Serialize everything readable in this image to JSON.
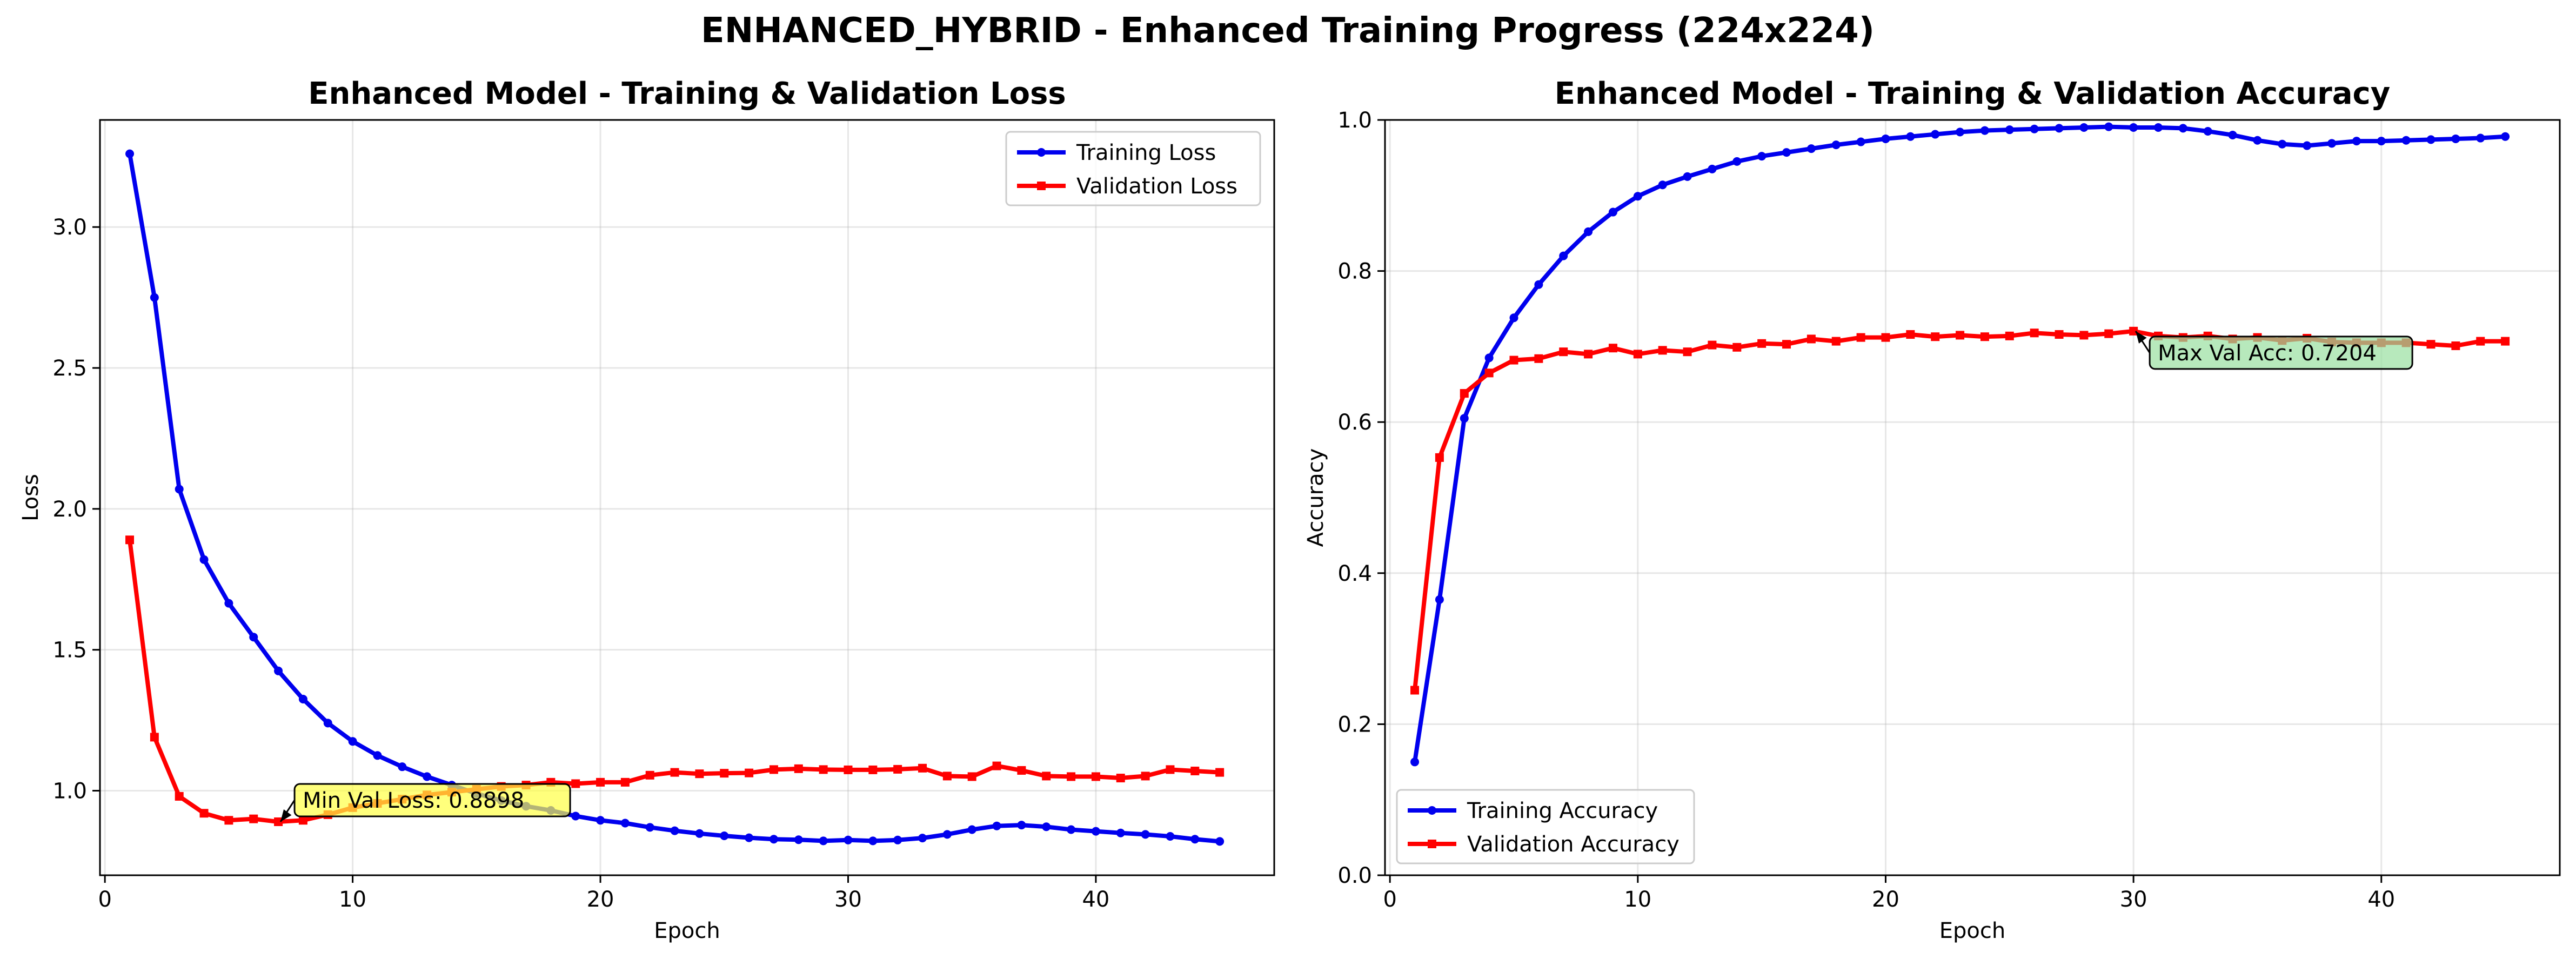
{
  "suptitle": "ENHANCED_HYBRID - Enhanced Training Progress (224x224)",
  "chart_data": [
    {
      "type": "line",
      "title": "Enhanced Model - Training & Validation Loss",
      "xlabel": "Epoch",
      "ylabel": "Loss",
      "xlim": [
        -0.2,
        47.2
      ],
      "ylim": [
        0.7,
        3.38
      ],
      "xticks": [
        0,
        10,
        20,
        30,
        40
      ],
      "yticks": [
        1.0,
        1.5,
        2.0,
        2.5,
        3.0
      ],
      "ytick_labels": [
        "1.0",
        "1.5",
        "2.0",
        "2.5",
        "3.0"
      ],
      "grid": true,
      "legend": "top-right",
      "x": [
        1,
        2,
        3,
        4,
        5,
        6,
        7,
        8,
        9,
        10,
        11,
        12,
        13,
        14,
        15,
        16,
        17,
        18,
        19,
        20,
        21,
        22,
        23,
        24,
        25,
        26,
        27,
        28,
        29,
        30,
        31,
        32,
        33,
        34,
        35,
        36,
        37,
        38,
        39,
        40,
        41,
        42,
        43,
        44,
        45
      ],
      "series": [
        {
          "name": "Training Loss",
          "color": "#0000ee",
          "marker": "circle",
          "values": [
            3.26,
            2.75,
            2.07,
            1.82,
            1.665,
            1.545,
            1.425,
            1.325,
            1.24,
            1.175,
            1.125,
            1.085,
            1.05,
            1.02,
            0.99,
            0.965,
            0.945,
            0.93,
            0.91,
            0.895,
            0.885,
            0.87,
            0.858,
            0.848,
            0.84,
            0.833,
            0.828,
            0.826,
            0.822,
            0.825,
            0.822,
            0.825,
            0.832,
            0.845,
            0.862,
            0.875,
            0.878,
            0.872,
            0.862,
            0.856,
            0.85,
            0.845,
            0.838,
            0.828,
            0.82
          ]
        },
        {
          "name": "Validation Loss",
          "color": "#ff0000",
          "marker": "square",
          "values": [
            1.89,
            1.19,
            0.98,
            0.92,
            0.895,
            0.9,
            0.8898,
            0.895,
            0.915,
            0.94,
            0.955,
            0.97,
            0.985,
            0.995,
            1.005,
            1.015,
            1.02,
            1.03,
            1.025,
            1.03,
            1.03,
            1.055,
            1.065,
            1.06,
            1.062,
            1.063,
            1.075,
            1.078,
            1.075,
            1.074,
            1.074,
            1.076,
            1.08,
            1.052,
            1.05,
            1.088,
            1.072,
            1.052,
            1.05,
            1.05,
            1.045,
            1.052,
            1.075,
            1.07,
            1.065
          ]
        }
      ],
      "annotation": {
        "text": "Min Val Loss: 0.8898",
        "x": 7,
        "y": 0.8898,
        "color": "#ffff44"
      }
    },
    {
      "type": "line",
      "title": "Enhanced Model - Training & Validation Accuracy",
      "xlabel": "Epoch",
      "ylabel": "Accuracy",
      "xlim": [
        -0.2,
        47.2
      ],
      "ylim": [
        0.0,
        1.0
      ],
      "xticks": [
        0,
        10,
        20,
        30,
        40
      ],
      "yticks": [
        0.0,
        0.2,
        0.4,
        0.6,
        0.8,
        1.0
      ],
      "ytick_labels": [
        "0.0",
        "0.2",
        "0.4",
        "0.6",
        "0.8",
        "1.0"
      ],
      "grid": true,
      "legend": "bottom-left",
      "x": [
        1,
        2,
        3,
        4,
        5,
        6,
        7,
        8,
        9,
        10,
        11,
        12,
        13,
        14,
        15,
        16,
        17,
        18,
        19,
        20,
        21,
        22,
        23,
        24,
        25,
        26,
        27,
        28,
        29,
        30,
        31,
        32,
        33,
        34,
        35,
        36,
        37,
        38,
        39,
        40,
        41,
        42,
        43,
        44,
        45
      ],
      "series": [
        {
          "name": "Training Accuracy",
          "color": "#0000ee",
          "marker": "circle",
          "values": [
            0.15,
            0.365,
            0.605,
            0.685,
            0.738,
            0.782,
            0.82,
            0.852,
            0.878,
            0.899,
            0.914,
            0.925,
            0.935,
            0.945,
            0.952,
            0.957,
            0.962,
            0.967,
            0.971,
            0.975,
            0.978,
            0.981,
            0.984,
            0.986,
            0.987,
            0.988,
            0.989,
            0.99,
            0.991,
            0.99,
            0.99,
            0.989,
            0.985,
            0.98,
            0.973,
            0.968,
            0.966,
            0.969,
            0.972,
            0.972,
            0.973,
            0.974,
            0.975,
            0.976,
            0.978
          ]
        },
        {
          "name": "Validation Accuracy",
          "color": "#ff0000",
          "marker": "square",
          "values": [
            0.245,
            0.553,
            0.638,
            0.665,
            0.682,
            0.684,
            0.693,
            0.69,
            0.698,
            0.69,
            0.695,
            0.693,
            0.702,
            0.699,
            0.704,
            0.703,
            0.71,
            0.707,
            0.712,
            0.712,
            0.716,
            0.713,
            0.715,
            0.713,
            0.714,
            0.718,
            0.716,
            0.715,
            0.717,
            0.7204,
            0.714,
            0.712,
            0.714,
            0.71,
            0.712,
            0.708,
            0.711,
            0.706,
            0.705,
            0.705,
            0.705,
            0.703,
            0.701,
            0.707,
            0.707
          ]
        }
      ],
      "annotation": {
        "text": "Max Val Acc: 0.7204",
        "x": 30,
        "y": 0.7204,
        "color": "#99e0a0"
      }
    }
  ]
}
